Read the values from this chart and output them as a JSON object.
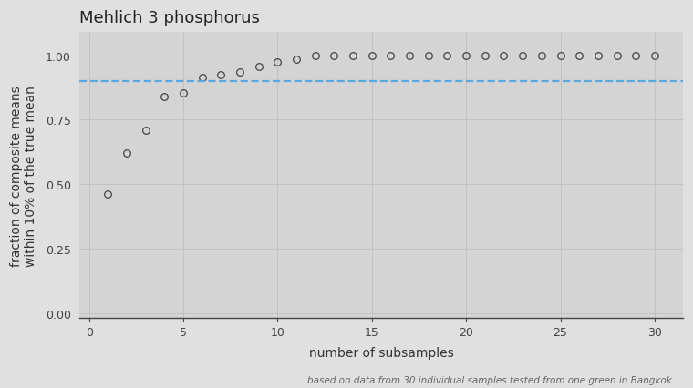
{
  "title": "Mehlich 3 phosphorus",
  "xlabel": "number of subsamples",
  "ylabel": "fraction of composite means\nwithin 10% of the true mean",
  "caption": "based on data from 30 individual samples tested from one green in Bangkok",
  "x": [
    1,
    2,
    3,
    4,
    5,
    6,
    7,
    8,
    9,
    10,
    11,
    12,
    13,
    14,
    15,
    16,
    17,
    18,
    19,
    20,
    21,
    22,
    23,
    24,
    25,
    26,
    27,
    28,
    29,
    30
  ],
  "y": [
    0.46,
    0.62,
    0.71,
    0.84,
    0.855,
    0.915,
    0.925,
    0.935,
    0.955,
    0.975,
    0.985,
    1.0,
    1.0,
    1.0,
    1.0,
    1.0,
    1.0,
    1.0,
    1.0,
    1.0,
    1.0,
    1.0,
    1.0,
    1.0,
    1.0,
    1.0,
    1.0,
    1.0,
    1.0,
    1.0
  ],
  "hline_y": 0.9,
  "hline_color": "#5aa8e0",
  "hline_style": "--",
  "background_color": "#e0e0e0",
  "plot_bg_color": "#d4d4d4",
  "marker_edgecolor": "#444444",
  "marker_size": 5.5,
  "marker_edgewidth": 0.9,
  "ylim": [
    -0.02,
    1.09
  ],
  "xlim": [
    -0.5,
    31.5
  ],
  "yticks": [
    0.0,
    0.25,
    0.5,
    0.75,
    1.0
  ],
  "xticks": [
    0,
    5,
    10,
    15,
    20,
    25,
    30
  ],
  "title_fontsize": 13,
  "label_fontsize": 10,
  "tick_fontsize": 9,
  "caption_fontsize": 7.5,
  "grid_color": "#bbbbbb",
  "spine_color": "#444444"
}
